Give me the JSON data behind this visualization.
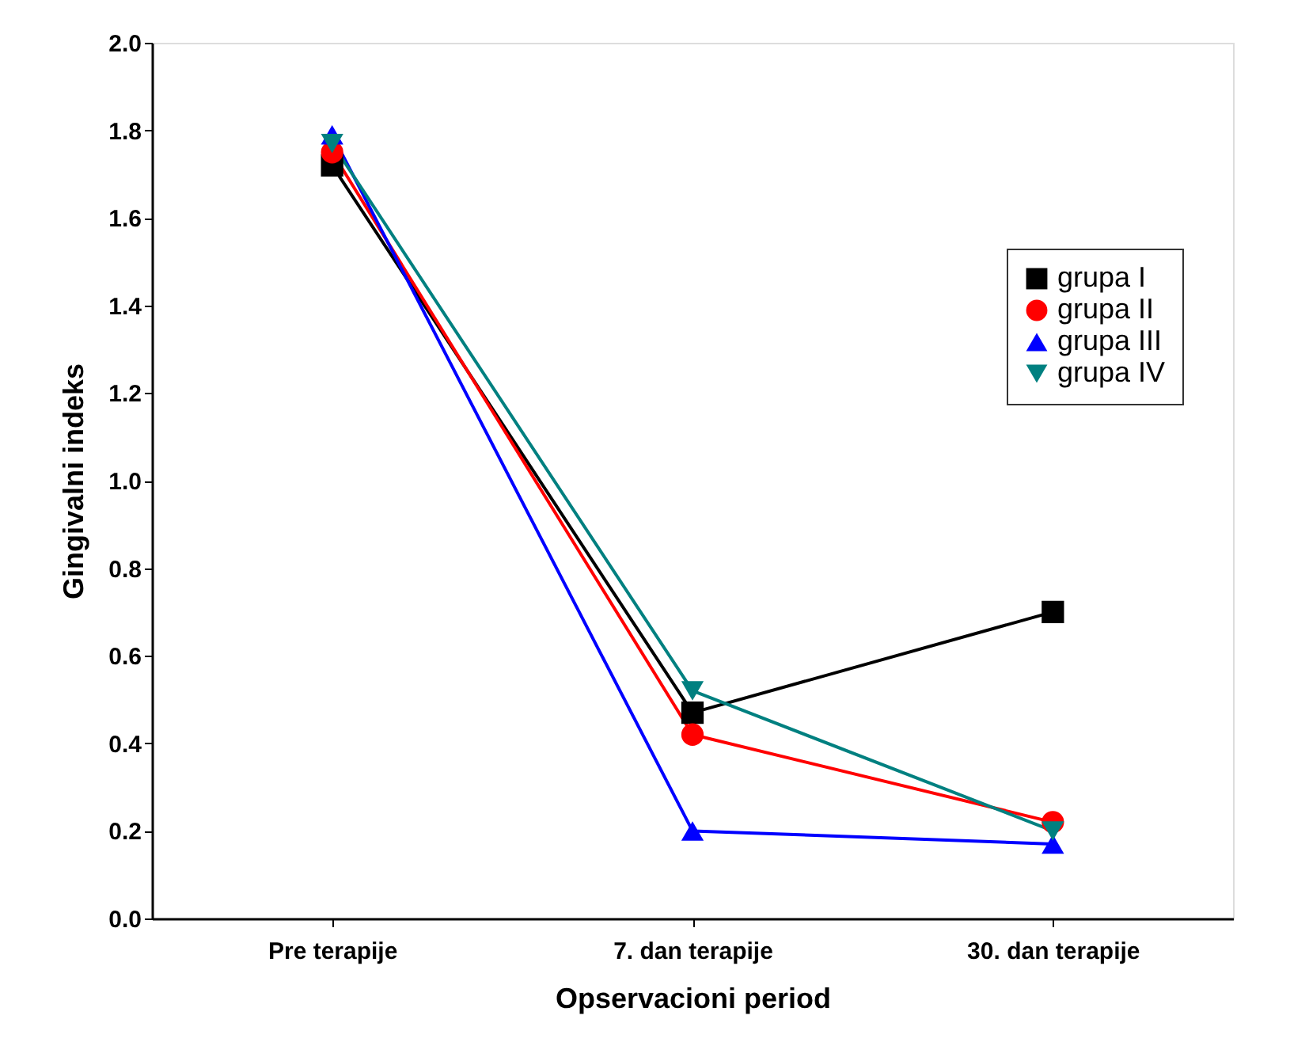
{
  "chart_data": {
    "type": "line",
    "xlabel": "Opservacioni period",
    "ylabel": "Gingivalni indeks",
    "categories": [
      "Pre terapije",
      "7. dan terapije",
      "30. dan terapije"
    ],
    "series": [
      {
        "name": "grupa I",
        "color": "#000000",
        "marker": "square",
        "values": [
          1.72,
          0.47,
          0.7
        ]
      },
      {
        "name": "grupa II",
        "color": "#ff0000",
        "marker": "circle",
        "values": [
          1.75,
          0.42,
          0.22
        ]
      },
      {
        "name": "grupa III",
        "color": "#0000ff",
        "marker": "triangle",
        "values": [
          1.79,
          0.2,
          0.17
        ]
      },
      {
        "name": "grupa IV",
        "color": "#008080",
        "marker": "triangle_down",
        "values": [
          1.77,
          0.52,
          0.2
        ]
      }
    ],
    "ylim": [
      0,
      2.0
    ],
    "yticks": [
      {
        "value": 0,
        "label": "0.0"
      },
      0.2,
      0.4,
      0.6,
      0.8,
      {
        "value": 1.0,
        "label": "1.0"
      },
      1.2,
      1.4,
      1.6,
      1.8,
      {
        "value": 2.0,
        "label": "2.0"
      }
    ],
    "grid": false,
    "legend": "right",
    "line_style": "solid"
  }
}
